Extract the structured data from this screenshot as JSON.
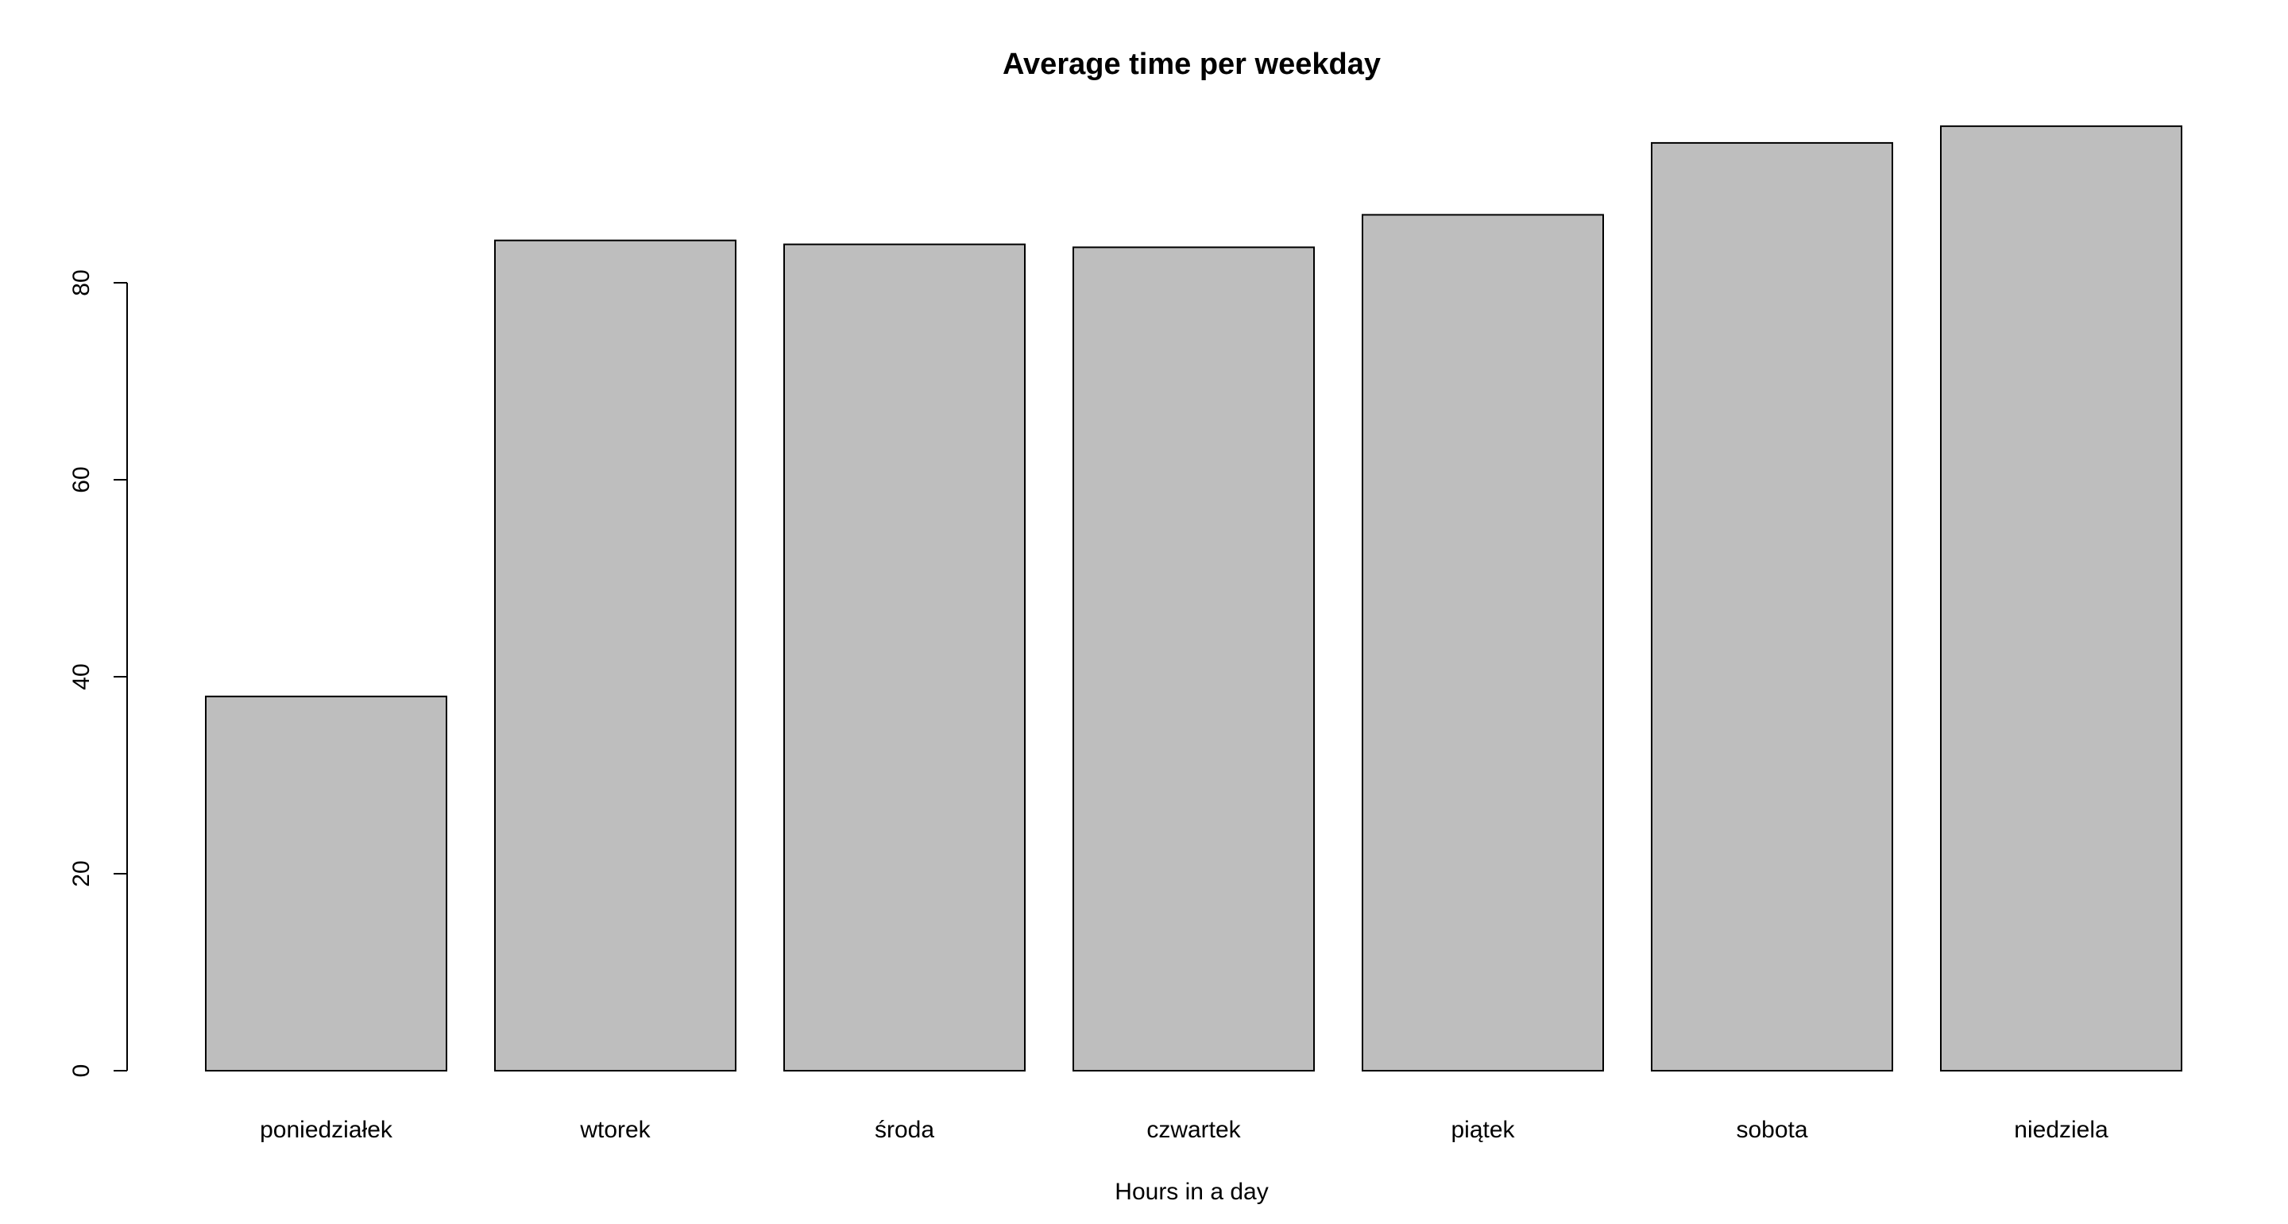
{
  "chart_data": {
    "type": "bar",
    "title": "Average time per weekday",
    "xlabel": "Hours in a day",
    "ylabel": "",
    "categories": [
      "poniedziałek",
      "wtorek",
      "środa",
      "czwartek",
      "piątek",
      "sobota",
      "niedziela"
    ],
    "values": [
      38,
      84.3,
      83.9,
      83.6,
      86.9,
      94.2,
      95.9
    ],
    "ylim": [
      0,
      96
    ],
    "yticks": [
      0,
      20,
      40,
      60,
      80
    ],
    "grid": false,
    "legend": "none",
    "colors": {
      "bar_fill": "#bebebe",
      "bar_stroke": "#000000",
      "text": "#000000",
      "background": "#ffffff"
    }
  }
}
